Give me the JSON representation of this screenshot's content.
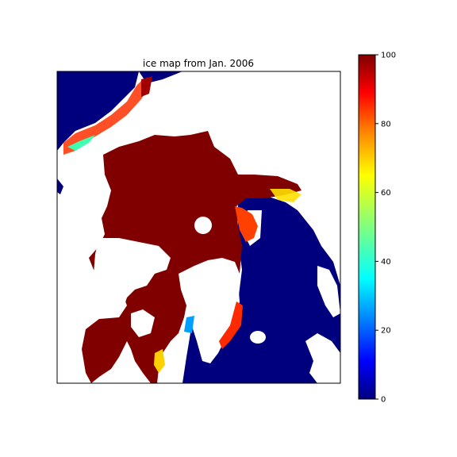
{
  "map": {
    "title": "ice map from Jan. 2006",
    "colormap": "jet",
    "background_color": "#ffffff",
    "frame_color": "#000000"
  },
  "colorbar": {
    "min": 0,
    "max": 100,
    "ticks": [
      "0",
      "20",
      "40",
      "60",
      "80",
      "100"
    ],
    "stops": [
      "#00007f",
      "#0000ff",
      "#0080ff",
      "#00ffff",
      "#80ff80",
      "#ffff00",
      "#ff8000",
      "#ff0000",
      "#7f0000"
    ]
  },
  "legend_colors": {
    "sea_ice_full": "#800000",
    "open_ocean": "#00007f",
    "land": "#ffffff"
  }
}
